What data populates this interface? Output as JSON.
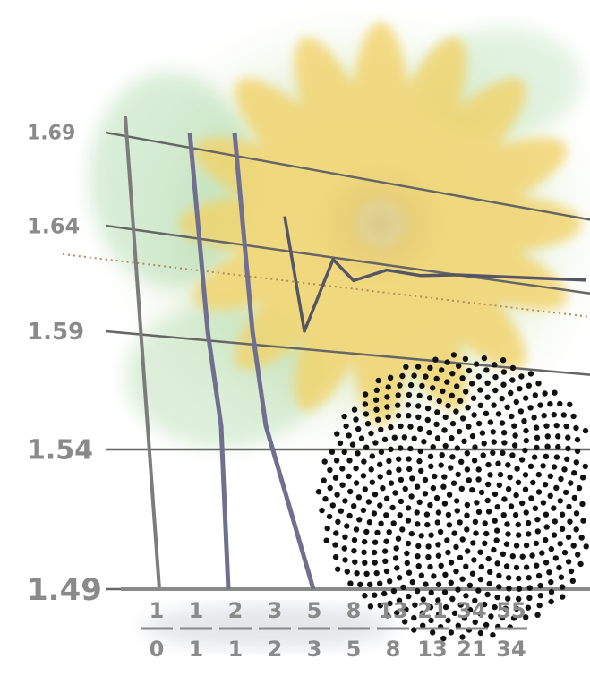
{
  "chart_data": {
    "type": "line",
    "title": "",
    "xlabel": "",
    "ylabel": "",
    "ylim": [
      1.49,
      1.69
    ],
    "yticks": [
      "1.69",
      "1.64",
      "1.59",
      "1.54",
      "1.49"
    ],
    "xticks": [
      {
        "num": "1",
        "den": "0"
      },
      {
        "num": "1",
        "den": "1"
      },
      {
        "num": "2",
        "den": "1"
      },
      {
        "num": "3",
        "den": "2"
      },
      {
        "num": "5",
        "den": "3"
      },
      {
        "num": "8",
        "den": "5"
      },
      {
        "num": "13",
        "den": "8"
      },
      {
        "num": "21",
        "den": "13"
      },
      {
        "num": "34",
        "den": "21"
      },
      {
        "num": "55",
        "den": "34"
      }
    ],
    "reference_line": {
      "value": 1.618,
      "style": "dotted"
    },
    "series": [
      {
        "values": [
          1.69,
          1.49
        ],
        "color": "#6f6f8f"
      },
      {
        "values": [
          1.69,
          1.49
        ],
        "color": "#6f6f8f"
      },
      {
        "values": [
          1.645,
          1.59,
          1.624,
          1.614,
          1.619,
          1.617,
          1.618,
          1.618,
          1.618
        ],
        "color": "#555566"
      }
    ],
    "decoration": {
      "flower_color": "#f2d36b",
      "leaf_color": "#a7d7a0",
      "seed_dot_color": "#111111"
    }
  }
}
